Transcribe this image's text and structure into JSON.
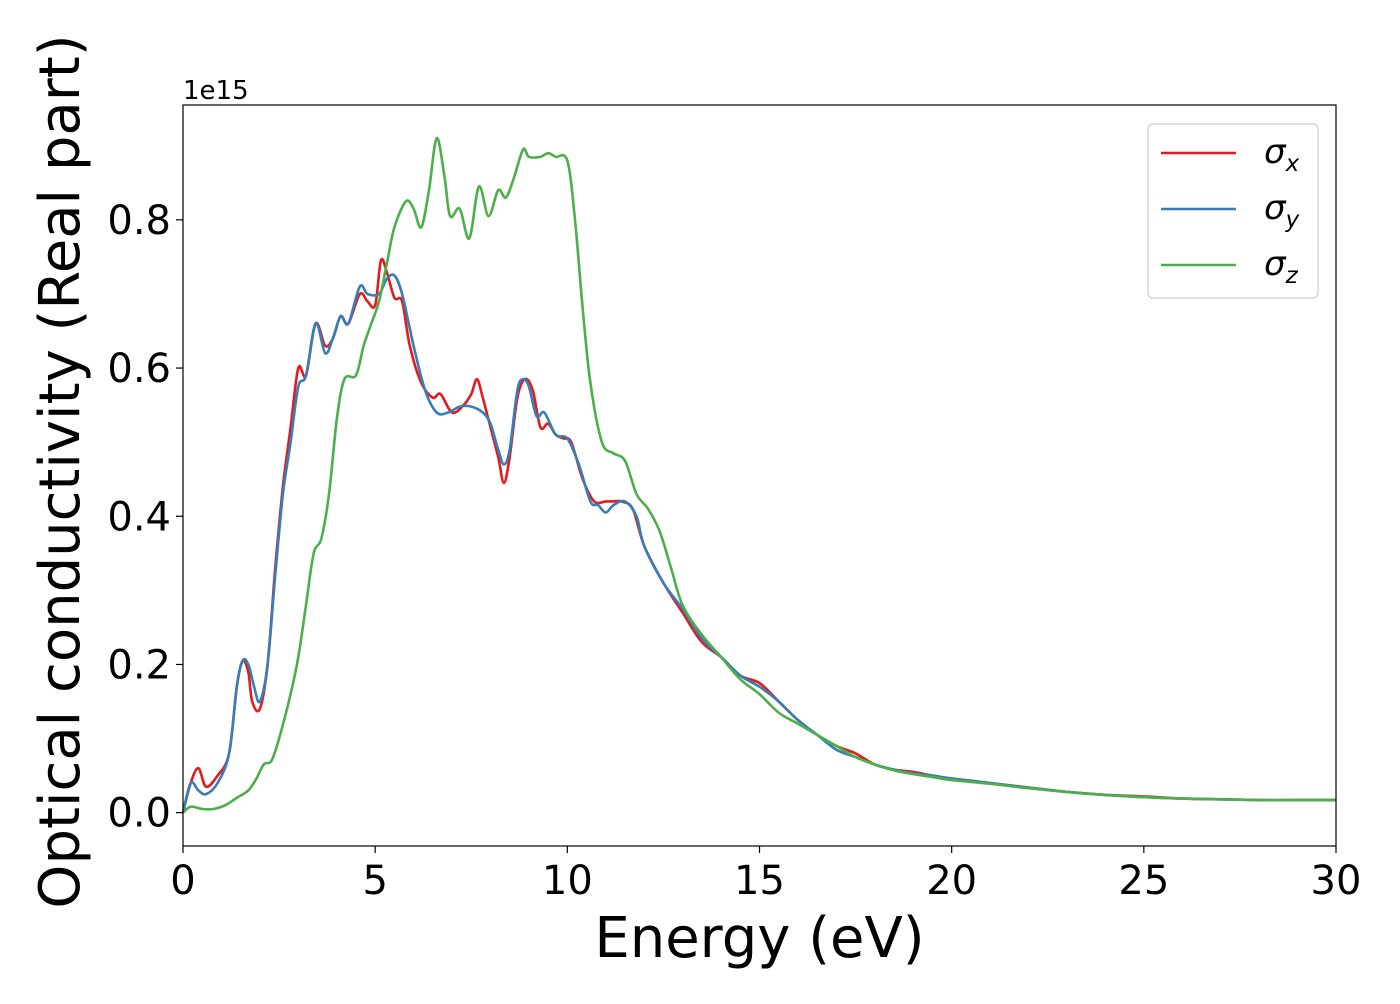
{
  "chart_data": {
    "type": "line",
    "title": "",
    "xlabel": "Energy (eV)",
    "ylabel": "Optical conductivity (Real part)",
    "y_offset_label": "1e15",
    "xlim": [
      0,
      30
    ],
    "ylim": [
      -0.045,
      0.955
    ],
    "x_ticks": [
      0,
      5,
      10,
      15,
      20,
      25,
      30
    ],
    "x_tick_labels": [
      "0",
      "5",
      "10",
      "15",
      "20",
      "25",
      "30"
    ],
    "y_ticks": [
      0.0,
      0.2,
      0.4,
      0.6,
      0.8
    ],
    "y_tick_labels": [
      "0.0",
      "0.2",
      "0.4",
      "0.6",
      "0.8"
    ],
    "grid": false,
    "legend_position": "top-right",
    "series": [
      {
        "name": "σx",
        "legend_base": "σ",
        "legend_sub": "x",
        "color": "#e41a1c",
        "points": [
          [
            0,
            0
          ],
          [
            0.2,
            0.04
          ],
          [
            0.4,
            0.06
          ],
          [
            0.6,
            0.035
          ],
          [
            0.9,
            0.05
          ],
          [
            1.2,
            0.08
          ],
          [
            1.4,
            0.17
          ],
          [
            1.55,
            0.205
          ],
          [
            1.7,
            0.19
          ],
          [
            1.8,
            0.15
          ],
          [
            2.0,
            0.14
          ],
          [
            2.2,
            0.2
          ],
          [
            2.4,
            0.33
          ],
          [
            2.6,
            0.44
          ],
          [
            2.8,
            0.52
          ],
          [
            3.0,
            0.6
          ],
          [
            3.2,
            0.59
          ],
          [
            3.45,
            0.66
          ],
          [
            3.7,
            0.63
          ],
          [
            3.9,
            0.64
          ],
          [
            4.1,
            0.67
          ],
          [
            4.3,
            0.66
          ],
          [
            4.6,
            0.7
          ],
          [
            4.8,
            0.69
          ],
          [
            5.0,
            0.685
          ],
          [
            5.15,
            0.745
          ],
          [
            5.3,
            0.73
          ],
          [
            5.5,
            0.695
          ],
          [
            5.7,
            0.69
          ],
          [
            5.9,
            0.63
          ],
          [
            6.2,
            0.58
          ],
          [
            6.5,
            0.56
          ],
          [
            6.7,
            0.565
          ],
          [
            7.0,
            0.54
          ],
          [
            7.3,
            0.55
          ],
          [
            7.5,
            0.565
          ],
          [
            7.65,
            0.585
          ],
          [
            7.8,
            0.56
          ],
          [
            8.0,
            0.52
          ],
          [
            8.2,
            0.48
          ],
          [
            8.35,
            0.445
          ],
          [
            8.5,
            0.48
          ],
          [
            8.7,
            0.56
          ],
          [
            8.9,
            0.585
          ],
          [
            9.1,
            0.57
          ],
          [
            9.3,
            0.52
          ],
          [
            9.5,
            0.525
          ],
          [
            9.7,
            0.51
          ],
          [
            9.9,
            0.505
          ],
          [
            10.1,
            0.5
          ],
          [
            10.4,
            0.45
          ],
          [
            10.7,
            0.42
          ],
          [
            11.0,
            0.42
          ],
          [
            11.2,
            0.42
          ],
          [
            11.4,
            0.42
          ],
          [
            11.7,
            0.41
          ],
          [
            12.0,
            0.36
          ],
          [
            12.5,
            0.31
          ],
          [
            13.0,
            0.27
          ],
          [
            13.5,
            0.23
          ],
          [
            14.0,
            0.21
          ],
          [
            14.5,
            0.185
          ],
          [
            15.0,
            0.175
          ],
          [
            15.5,
            0.15
          ],
          [
            16.0,
            0.125
          ],
          [
            16.5,
            0.105
          ],
          [
            17.0,
            0.09
          ],
          [
            17.5,
            0.08
          ],
          [
            18.0,
            0.065
          ],
          [
            18.5,
            0.058
          ],
          [
            19.0,
            0.055
          ],
          [
            19.5,
            0.05
          ],
          [
            20.0,
            0.046
          ],
          [
            21.0,
            0.04
          ],
          [
            22.0,
            0.034
          ],
          [
            23.0,
            0.028
          ],
          [
            24.0,
            0.024
          ],
          [
            25.0,
            0.022
          ],
          [
            26.0,
            0.019
          ],
          [
            27.0,
            0.018
          ],
          [
            28.0,
            0.017
          ],
          [
            29.0,
            0.017
          ],
          [
            30.0,
            0.017
          ]
        ]
      },
      {
        "name": "σy",
        "legend_base": "σ",
        "legend_sub": "y",
        "color": "#377eb8",
        "points": [
          [
            0,
            0
          ],
          [
            0.2,
            0.04
          ],
          [
            0.4,
            0.03
          ],
          [
            0.6,
            0.025
          ],
          [
            0.9,
            0.04
          ],
          [
            1.2,
            0.08
          ],
          [
            1.4,
            0.17
          ],
          [
            1.55,
            0.205
          ],
          [
            1.7,
            0.2
          ],
          [
            1.85,
            0.17
          ],
          [
            2.0,
            0.15
          ],
          [
            2.2,
            0.2
          ],
          [
            2.4,
            0.32
          ],
          [
            2.6,
            0.43
          ],
          [
            2.8,
            0.5
          ],
          [
            3.0,
            0.575
          ],
          [
            3.2,
            0.59
          ],
          [
            3.45,
            0.66
          ],
          [
            3.7,
            0.62
          ],
          [
            3.9,
            0.64
          ],
          [
            4.1,
            0.67
          ],
          [
            4.3,
            0.66
          ],
          [
            4.6,
            0.71
          ],
          [
            4.8,
            0.7
          ],
          [
            5.1,
            0.7
          ],
          [
            5.3,
            0.72
          ],
          [
            5.5,
            0.725
          ],
          [
            5.7,
            0.7
          ],
          [
            6.0,
            0.63
          ],
          [
            6.3,
            0.57
          ],
          [
            6.6,
            0.54
          ],
          [
            6.9,
            0.54
          ],
          [
            7.2,
            0.548
          ],
          [
            7.5,
            0.548
          ],
          [
            7.8,
            0.54
          ],
          [
            8.0,
            0.525
          ],
          [
            8.2,
            0.49
          ],
          [
            8.35,
            0.47
          ],
          [
            8.5,
            0.49
          ],
          [
            8.7,
            0.57
          ],
          [
            8.85,
            0.585
          ],
          [
            9.0,
            0.575
          ],
          [
            9.2,
            0.535
          ],
          [
            9.4,
            0.54
          ],
          [
            9.7,
            0.51
          ],
          [
            10.0,
            0.505
          ],
          [
            10.3,
            0.47
          ],
          [
            10.6,
            0.42
          ],
          [
            10.8,
            0.415
          ],
          [
            11.0,
            0.405
          ],
          [
            11.2,
            0.415
          ],
          [
            11.5,
            0.42
          ],
          [
            11.8,
            0.4
          ],
          [
            12.0,
            0.36
          ],
          [
            12.5,
            0.31
          ],
          [
            13.0,
            0.275
          ],
          [
            13.5,
            0.235
          ],
          [
            14.0,
            0.21
          ],
          [
            14.5,
            0.185
          ],
          [
            15.0,
            0.17
          ],
          [
            15.5,
            0.15
          ],
          [
            16.0,
            0.125
          ],
          [
            16.5,
            0.105
          ],
          [
            17.0,
            0.085
          ],
          [
            17.5,
            0.075
          ],
          [
            18.0,
            0.065
          ],
          [
            18.5,
            0.058
          ],
          [
            19.0,
            0.053
          ],
          [
            19.5,
            0.05
          ],
          [
            20.0,
            0.046
          ],
          [
            21.0,
            0.04
          ],
          [
            22.0,
            0.034
          ],
          [
            23.0,
            0.028
          ],
          [
            24.0,
            0.024
          ],
          [
            25.0,
            0.021
          ],
          [
            26.0,
            0.019
          ],
          [
            27.0,
            0.018
          ],
          [
            28.0,
            0.017
          ],
          [
            29.0,
            0.017
          ],
          [
            30.0,
            0.017
          ]
        ]
      },
      {
        "name": "σz",
        "legend_base": "σ",
        "legend_sub": "z",
        "color": "#4daf4a",
        "points": [
          [
            0,
            0
          ],
          [
            0.2,
            0.008
          ],
          [
            0.5,
            0.005
          ],
          [
            0.8,
            0.005
          ],
          [
            1.1,
            0.01
          ],
          [
            1.4,
            0.02
          ],
          [
            1.7,
            0.03
          ],
          [
            1.9,
            0.045
          ],
          [
            2.1,
            0.065
          ],
          [
            2.3,
            0.07
          ],
          [
            2.5,
            0.1
          ],
          [
            2.8,
            0.16
          ],
          [
            3.0,
            0.21
          ],
          [
            3.2,
            0.28
          ],
          [
            3.4,
            0.35
          ],
          [
            3.6,
            0.37
          ],
          [
            3.8,
            0.43
          ],
          [
            4.0,
            0.53
          ],
          [
            4.2,
            0.585
          ],
          [
            4.5,
            0.59
          ],
          [
            4.7,
            0.63
          ],
          [
            4.9,
            0.66
          ],
          [
            5.1,
            0.69
          ],
          [
            5.3,
            0.74
          ],
          [
            5.5,
            0.79
          ],
          [
            5.8,
            0.825
          ],
          [
            6.0,
            0.815
          ],
          [
            6.2,
            0.79
          ],
          [
            6.4,
            0.84
          ],
          [
            6.6,
            0.91
          ],
          [
            6.8,
            0.86
          ],
          [
            6.95,
            0.805
          ],
          [
            7.2,
            0.815
          ],
          [
            7.45,
            0.775
          ],
          [
            7.7,
            0.845
          ],
          [
            7.95,
            0.805
          ],
          [
            8.2,
            0.84
          ],
          [
            8.4,
            0.83
          ],
          [
            8.6,
            0.855
          ],
          [
            8.85,
            0.895
          ],
          [
            9.0,
            0.885
          ],
          [
            9.3,
            0.885
          ],
          [
            9.5,
            0.89
          ],
          [
            9.7,
            0.885
          ],
          [
            10.0,
            0.88
          ],
          [
            10.2,
            0.8
          ],
          [
            10.4,
            0.68
          ],
          [
            10.6,
            0.58
          ],
          [
            10.9,
            0.5
          ],
          [
            11.2,
            0.485
          ],
          [
            11.5,
            0.475
          ],
          [
            11.8,
            0.43
          ],
          [
            12.1,
            0.41
          ],
          [
            12.4,
            0.38
          ],
          [
            12.7,
            0.33
          ],
          [
            13.0,
            0.28
          ],
          [
            13.5,
            0.24
          ],
          [
            14.0,
            0.21
          ],
          [
            14.5,
            0.18
          ],
          [
            15.0,
            0.16
          ],
          [
            15.5,
            0.135
          ],
          [
            16.0,
            0.12
          ],
          [
            16.5,
            0.105
          ],
          [
            17.0,
            0.09
          ],
          [
            17.5,
            0.075
          ],
          [
            18.0,
            0.065
          ],
          [
            18.5,
            0.057
          ],
          [
            19.0,
            0.052
          ],
          [
            19.5,
            0.048
          ],
          [
            20.0,
            0.044
          ],
          [
            21.0,
            0.039
          ],
          [
            22.0,
            0.033
          ],
          [
            23.0,
            0.028
          ],
          [
            24.0,
            0.024
          ],
          [
            25.0,
            0.021
          ],
          [
            26.0,
            0.019
          ],
          [
            27.0,
            0.018
          ],
          [
            28.0,
            0.017
          ],
          [
            29.0,
            0.017
          ],
          [
            30.0,
            0.017
          ]
        ]
      }
    ]
  }
}
